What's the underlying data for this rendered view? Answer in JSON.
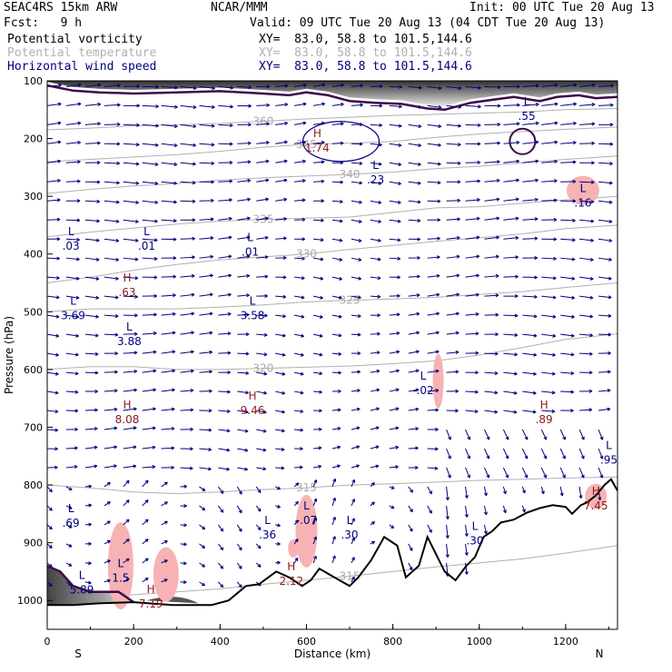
{
  "header": {
    "model": "SEAC4RS 15km ARW",
    "org": "NCAR/MMM",
    "init": "Init: 00 UTC Tue 20 Aug 13",
    "fcst": "Fcst:   9 h",
    "valid": "Valid: 09 UTC Tue 20 Aug 13 (04 CDT Tue 20 Aug 13)",
    "fields": [
      {
        "name": "Potential vorticity",
        "xy": "XY=  83.0, 58.8 to 101.5,144.6",
        "color": "#000000"
      },
      {
        "name": "Potential temperature",
        "xy": "XY=  83.0, 58.8 to 101.5,144.6",
        "color": "#b0b0b0"
      },
      {
        "name": "Horizontal wind speed",
        "xy": "XY=  83.0, 58.8 to 101.5,144.6",
        "color": "#00007a"
      }
    ]
  },
  "colors": {
    "wind": "#000080",
    "theta": "#b0b0b0",
    "pv_line": "#3c0a4a",
    "terrain": "#000000",
    "pink": "#f7b3b3",
    "label_red": "#8b1a1a",
    "label_blue": "#000080"
  },
  "chart_data": {
    "type": "cross-section",
    "xlabel": "Distance (km)",
    "ylabel": "Pressure (hPa)",
    "xlim": [
      0,
      1320
    ],
    "ylim": [
      1050,
      100
    ],
    "x_ticks": [
      0,
      200,
      400,
      600,
      800,
      1000,
      1200
    ],
    "y_ticks": [
      100,
      200,
      300,
      400,
      500,
      600,
      700,
      800,
      900,
      1000
    ],
    "end_labels": {
      "left": "S",
      "right": "N"
    },
    "terrain": [
      [
        0,
        1008
      ],
      [
        60,
        1008
      ],
      [
        120,
        1005
      ],
      [
        200,
        1003
      ],
      [
        290,
        1008
      ],
      [
        380,
        1008
      ],
      [
        420,
        1000
      ],
      [
        460,
        975
      ],
      [
        490,
        972
      ],
      [
        530,
        950
      ],
      [
        560,
        960
      ],
      [
        590,
        975
      ],
      [
        610,
        965
      ],
      [
        630,
        945
      ],
      [
        660,
        958
      ],
      [
        700,
        975
      ],
      [
        720,
        960
      ],
      [
        750,
        930
      ],
      [
        780,
        890
      ],
      [
        810,
        905
      ],
      [
        830,
        960
      ],
      [
        860,
        940
      ],
      [
        880,
        890
      ],
      [
        920,
        950
      ],
      [
        945,
        965
      ],
      [
        970,
        940
      ],
      [
        990,
        925
      ],
      [
        1010,
        890
      ],
      [
        1030,
        880
      ],
      [
        1050,
        865
      ],
      [
        1080,
        860
      ],
      [
        1110,
        848
      ],
      [
        1140,
        840
      ],
      [
        1170,
        835
      ],
      [
        1200,
        838
      ],
      [
        1215,
        850
      ],
      [
        1235,
        835
      ],
      [
        1250,
        830
      ],
      [
        1270,
        818
      ],
      [
        1290,
        800
      ],
      [
        1305,
        790
      ],
      [
        1320,
        810
      ]
    ],
    "theta_contours": [
      {
        "label": "315",
        "points": [
          [
            0,
            1003
          ],
          [
            100,
            996
          ],
          [
            200,
            990
          ],
          [
            300,
            985
          ],
          [
            400,
            980
          ],
          [
            500,
            972
          ],
          [
            600,
            965
          ],
          [
            700,
            958
          ],
          [
            800,
            950
          ],
          [
            900,
            942
          ],
          [
            1000,
            935
          ],
          [
            1100,
            928
          ],
          [
            1200,
            918
          ],
          [
            1320,
            905
          ]
        ]
      },
      {
        "label": "315",
        "points": [
          [
            0,
            800
          ],
          [
            100,
            805
          ],
          [
            200,
            812
          ],
          [
            300,
            815
          ],
          [
            400,
            812
          ],
          [
            500,
            808
          ],
          [
            600,
            805
          ],
          [
            700,
            800
          ],
          [
            800,
            798
          ],
          [
            900,
            795
          ],
          [
            1000,
            792
          ],
          [
            1100,
            790
          ],
          [
            1200,
            788
          ],
          [
            1320,
            786
          ]
        ]
      },
      {
        "label": "320",
        "points": [
          [
            0,
            600
          ],
          [
            100,
            595
          ],
          [
            200,
            595
          ],
          [
            300,
            600
          ],
          [
            400,
            600
          ],
          [
            500,
            598
          ],
          [
            600,
            596
          ],
          [
            700,
            594
          ],
          [
            800,
            590
          ],
          [
            900,
            585
          ],
          [
            1000,
            575
          ],
          [
            1100,
            562
          ],
          [
            1200,
            548
          ],
          [
            1320,
            538
          ]
        ]
      },
      {
        "label": "325",
        "points": [
          [
            0,
            500
          ],
          [
            100,
            495
          ],
          [
            200,
            495
          ],
          [
            300,
            495
          ],
          [
            400,
            492
          ],
          [
            500,
            488
          ],
          [
            600,
            483
          ],
          [
            700,
            480
          ],
          [
            800,
            478
          ],
          [
            900,
            475
          ],
          [
            1000,
            470
          ],
          [
            1100,
            465
          ],
          [
            1200,
            458
          ],
          [
            1320,
            450
          ]
        ]
      },
      {
        "label": "330",
        "points": [
          [
            0,
            450
          ],
          [
            100,
            440
          ],
          [
            200,
            428
          ],
          [
            300,
            418
          ],
          [
            400,
            410
          ],
          [
            500,
            405
          ],
          [
            600,
            400
          ],
          [
            700,
            392
          ],
          [
            800,
            385
          ],
          [
            900,
            378
          ],
          [
            1000,
            372
          ],
          [
            1100,
            365
          ],
          [
            1200,
            356
          ],
          [
            1320,
            350
          ]
        ]
      },
      {
        "label": "335",
        "points": [
          [
            0,
            370
          ],
          [
            100,
            362
          ],
          [
            200,
            355
          ],
          [
            300,
            348
          ],
          [
            400,
            343
          ],
          [
            500,
            340
          ],
          [
            600,
            338
          ],
          [
            700,
            336
          ],
          [
            800,
            328
          ],
          [
            900,
            320
          ],
          [
            1000,
            318
          ],
          [
            1100,
            312
          ],
          [
            1200,
            306
          ],
          [
            1320,
            300
          ]
        ]
      },
      {
        "label": "340",
        "points": [
          [
            0,
            295
          ],
          [
            100,
            288
          ],
          [
            200,
            282
          ],
          [
            300,
            278
          ],
          [
            400,
            272
          ],
          [
            500,
            268
          ],
          [
            600,
            265
          ],
          [
            700,
            262
          ],
          [
            800,
            258
          ],
          [
            900,
            252
          ],
          [
            1000,
            248
          ],
          [
            1100,
            242
          ],
          [
            1200,
            236
          ],
          [
            1320,
            230
          ]
        ]
      },
      {
        "label": "345",
        "points": [
          [
            0,
            240
          ],
          [
            100,
            236
          ],
          [
            200,
            232
          ],
          [
            300,
            228
          ],
          [
            400,
            222
          ],
          [
            500,
            215
          ],
          [
            600,
            210
          ],
          [
            700,
            208
          ],
          [
            800,
            205
          ],
          [
            900,
            198
          ],
          [
            1000,
            192
          ],
          [
            1100,
            188
          ],
          [
            1200,
            184
          ],
          [
            1320,
            180
          ]
        ]
      },
      {
        "label": "360",
        "points": [
          [
            0,
            185
          ],
          [
            100,
            182
          ],
          [
            200,
            178
          ],
          [
            300,
            176
          ],
          [
            400,
            174
          ],
          [
            500,
            170
          ],
          [
            600,
            166
          ],
          [
            700,
            163
          ],
          [
            800,
            160
          ],
          [
            900,
            158
          ],
          [
            1000,
            156
          ],
          [
            1100,
            154
          ],
          [
            1200,
            150
          ],
          [
            1320,
            148
          ]
        ]
      }
    ],
    "pv_tropopause": [
      [
        0,
        108
      ],
      [
        60,
        117
      ],
      [
        120,
        120
      ],
      [
        200,
        122
      ],
      [
        300,
        120
      ],
      [
        400,
        118
      ],
      [
        500,
        122
      ],
      [
        560,
        125
      ],
      [
        600,
        120
      ],
      [
        650,
        125
      ],
      [
        700,
        135
      ],
      [
        760,
        138
      ],
      [
        820,
        140
      ],
      [
        880,
        148
      ],
      [
        920,
        150
      ],
      [
        980,
        138
      ],
      [
        1040,
        132
      ],
      [
        1080,
        128
      ],
      [
        1140,
        135
      ],
      [
        1180,
        128
      ],
      [
        1230,
        125
      ],
      [
        1270,
        130
      ],
      [
        1320,
        128
      ]
    ],
    "pv_low": [
      [
        0,
        940
      ],
      [
        30,
        950
      ],
      [
        60,
        975
      ],
      [
        100,
        985
      ],
      [
        150,
        985
      ],
      [
        165,
        985
      ],
      [
        175,
        990
      ],
      [
        200,
        1003
      ]
    ],
    "labels": [
      {
        "text": "L",
        "value": ".03",
        "x": 55,
        "p": 380,
        "kind": "L"
      },
      {
        "text": "L",
        "value": ".01",
        "x": 230,
        "p": 380,
        "kind": "L"
      },
      {
        "text": "L",
        "value": ".01",
        "x": 470,
        "p": 390,
        "kind": "L"
      },
      {
        "text": "H",
        "value": ".63",
        "x": 185,
        "p": 460,
        "kind": "H"
      },
      {
        "text": "L",
        "value": "3.69",
        "x": 60,
        "p": 500,
        "kind": "L"
      },
      {
        "text": "L",
        "value": "3.58",
        "x": 475,
        "p": 500,
        "kind": "L"
      },
      {
        "text": "L",
        "value": "3.88",
        "x": 190,
        "p": 545,
        "kind": "L"
      },
      {
        "text": "L",
        "value": "-.02",
        "x": 870,
        "p": 630,
        "kind": "L"
      },
      {
        "text": "H",
        "value": "8.08",
        "x": 185,
        "p": 680,
        "kind": "H"
      },
      {
        "text": "H",
        "value": "9.46",
        "x": 475,
        "p": 665,
        "kind": "H"
      },
      {
        "text": "H",
        "value": ".89",
        "x": 1150,
        "p": 680,
        "kind": "H"
      },
      {
        "text": "L",
        "value": ".95",
        "x": 1300,
        "p": 750,
        "kind": "L"
      },
      {
        "text": "L",
        "value": ".69",
        "x": 55,
        "p": 860,
        "kind": "L"
      },
      {
        "text": "L",
        "value": ".36",
        "x": 510,
        "p": 880,
        "kind": "L"
      },
      {
        "text": "L",
        "value": "-.07",
        "x": 600,
        "p": 855,
        "kind": "L"
      },
      {
        "text": "L",
        "value": ".30",
        "x": 700,
        "p": 880,
        "kind": "L"
      },
      {
        "text": "L",
        "value": ".30",
        "x": 990,
        "p": 890,
        "kind": "L"
      },
      {
        "text": "L",
        "value": "1.5",
        "x": 170,
        "p": 955,
        "kind": "L"
      },
      {
        "text": "L",
        "value": "5.89",
        "x": 80,
        "p": 975,
        "kind": "L"
      },
      {
        "text": "H",
        "value": "7.19",
        "x": 240,
        "p": 1000,
        "kind": "H"
      },
      {
        "text": "H",
        "value": "2.12",
        "x": 565,
        "p": 960,
        "kind": "H"
      },
      {
        "text": "H",
        "value": "7.45",
        "x": 1270,
        "p": 830,
        "kind": "H"
      },
      {
        "text": "H",
        "value": "1.74",
        "x": 625,
        "p": 210,
        "kind": "H"
      },
      {
        "text": "L",
        "value": ".23",
        "x": 760,
        "p": 265,
        "kind": "L"
      },
      {
        "text": "L",
        "value": ".55",
        "x": 1110,
        "p": 155,
        "kind": "L"
      },
      {
        "text": "L",
        "value": ".16",
        "x": 1240,
        "p": 305,
        "kind": "L"
      }
    ]
  }
}
